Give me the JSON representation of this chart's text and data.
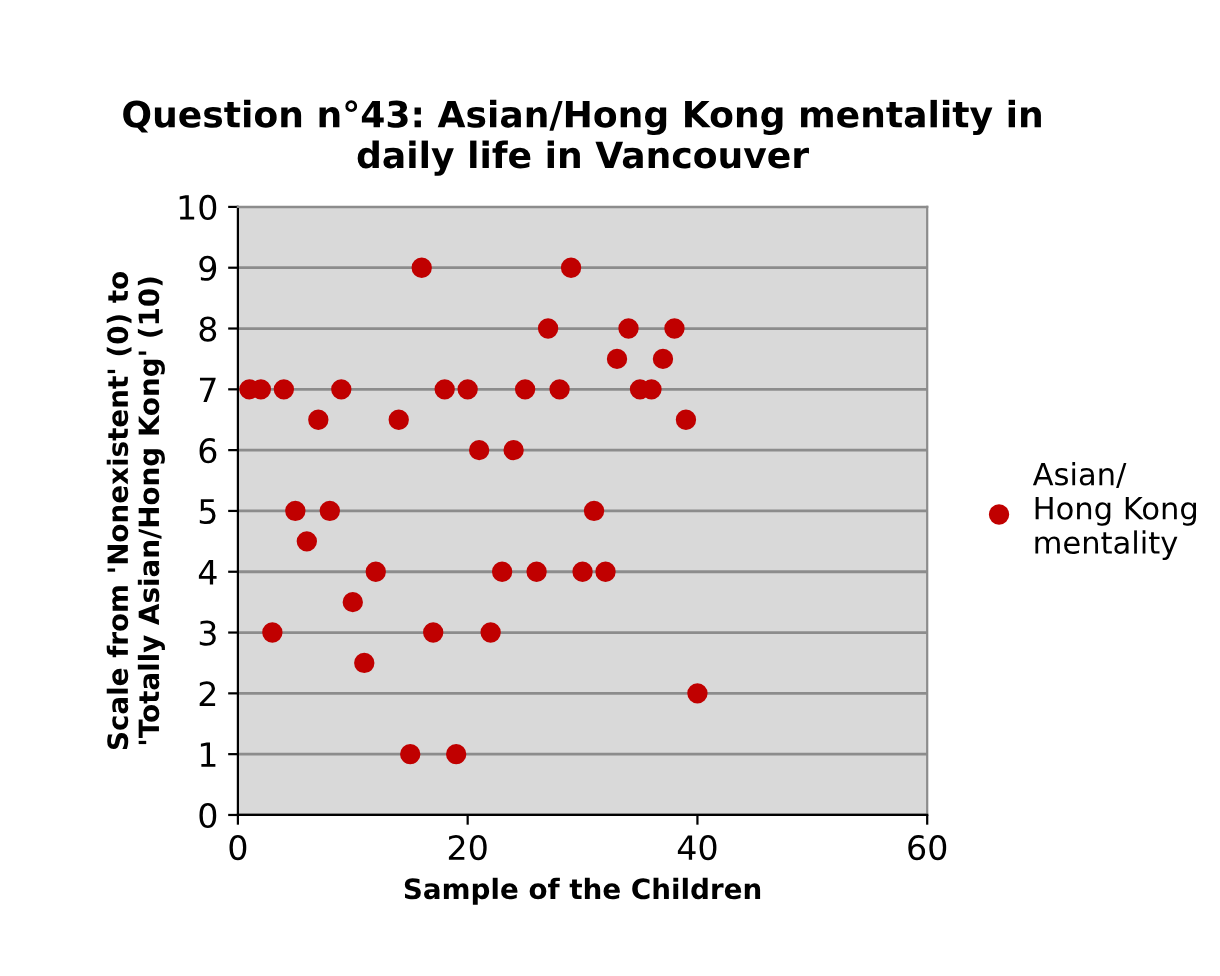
{
  "chart_data": {
    "type": "scatter",
    "title": "Question n°43: Asian/Hong Kong mentality in\ndaily life in Vancouver",
    "xlabel": "Sample of the Children",
    "ylabel": "Scale from 'Nonexistent' (0) to\n'Totally Asian/Hong Kong' (10)",
    "series": [
      {
        "name": "Asian/\nHong Kong\nmentality",
        "color": "#c00000",
        "x": [
          1,
          2,
          3,
          4,
          5,
          6,
          7,
          8,
          9,
          10,
          11,
          12,
          14,
          15,
          16,
          17,
          18,
          19,
          20,
          21,
          22,
          23,
          24,
          25,
          26,
          27,
          28,
          29,
          30,
          31,
          32,
          33,
          34,
          35,
          36,
          37,
          38,
          39,
          40
        ],
        "values": [
          7,
          7,
          3,
          7,
          5,
          4.5,
          6.5,
          5,
          7,
          3.5,
          2.5,
          4,
          6.5,
          1,
          9,
          3,
          7,
          1,
          7,
          6,
          3,
          4,
          6,
          7,
          4,
          8,
          7,
          9,
          4,
          5,
          4,
          7.5,
          8,
          7,
          7,
          7.5,
          8,
          6.5,
          2
        ]
      }
    ],
    "xlim": [
      0,
      60
    ],
    "xticks": [
      0,
      20,
      40,
      60
    ],
    "ylim": [
      0,
      10
    ],
    "yticks": [
      0,
      1,
      2,
      3,
      4,
      5,
      6,
      7,
      8,
      9,
      10
    ],
    "grid": "y",
    "legend": "right",
    "marker": "circle"
  }
}
